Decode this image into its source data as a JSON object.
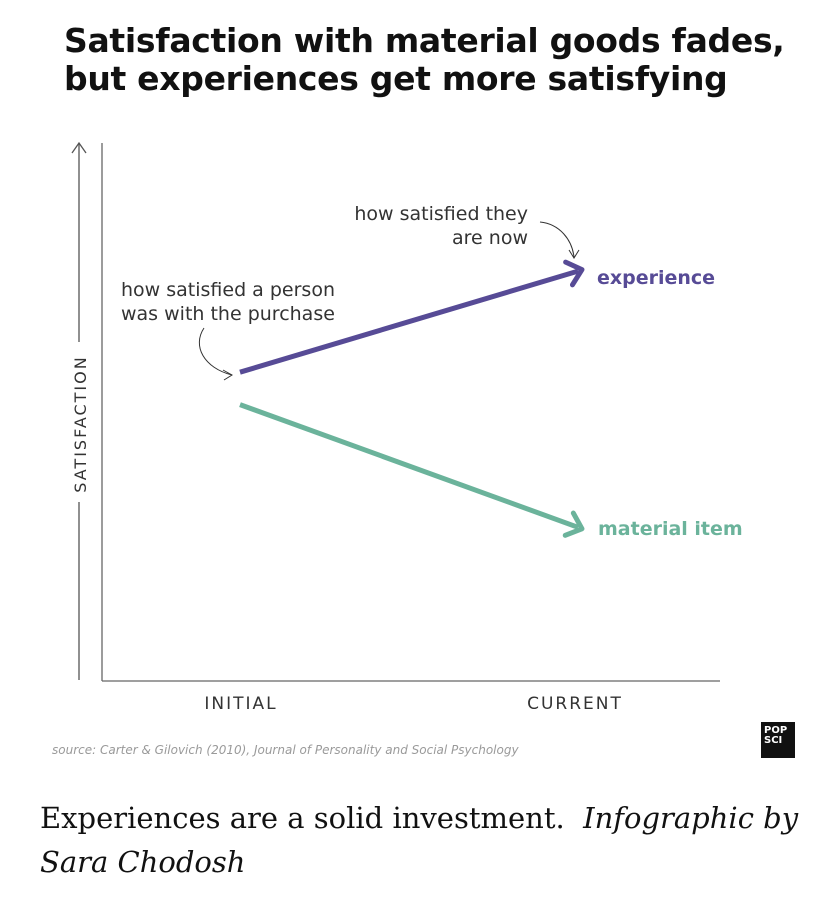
{
  "chart_data": {
    "type": "line",
    "title": "Satisfaction with material goods fades, but experiences get more satisfying",
    "title_lines": [
      "Satisfaction with material goods fades,",
      "but experiences get more satisfying"
    ],
    "ylabel": "SATISFACTION",
    "xlabel": "",
    "categories": [
      "INITIAL",
      "CURRENT"
    ],
    "ylim": [
      0,
      100
    ],
    "series": [
      {
        "name": "experience",
        "values": [
          57,
          76
        ],
        "color": "#574b96"
      },
      {
        "name": "material item",
        "values": [
          51,
          28
        ],
        "color": "#6bb39b"
      }
    ],
    "annotations": [
      {
        "lines": [
          "how satisfied a person",
          "was with the purchase"
        ],
        "target": "INITIAL"
      },
      {
        "lines": [
          "how satisfied they",
          "are now"
        ],
        "target": "CURRENT"
      }
    ],
    "source": "source: Carter & Gilovich (2010), Journal of Personality and Social Psychology",
    "grid": false,
    "legend": "direct labels at line ends"
  },
  "logo": {
    "line1": "POP",
    "line2": "SCI"
  },
  "caption": {
    "text": "Experiences are a solid investment.",
    "credit": "Infographic by Sara Chodosh"
  },
  "colors": {
    "experience": "#574b96",
    "material": "#6bb39b",
    "axis": "#555555",
    "text": "#333333"
  },
  "icons": [
    "y-axis-arrow-icon",
    "annotation-arrow-icon"
  ]
}
